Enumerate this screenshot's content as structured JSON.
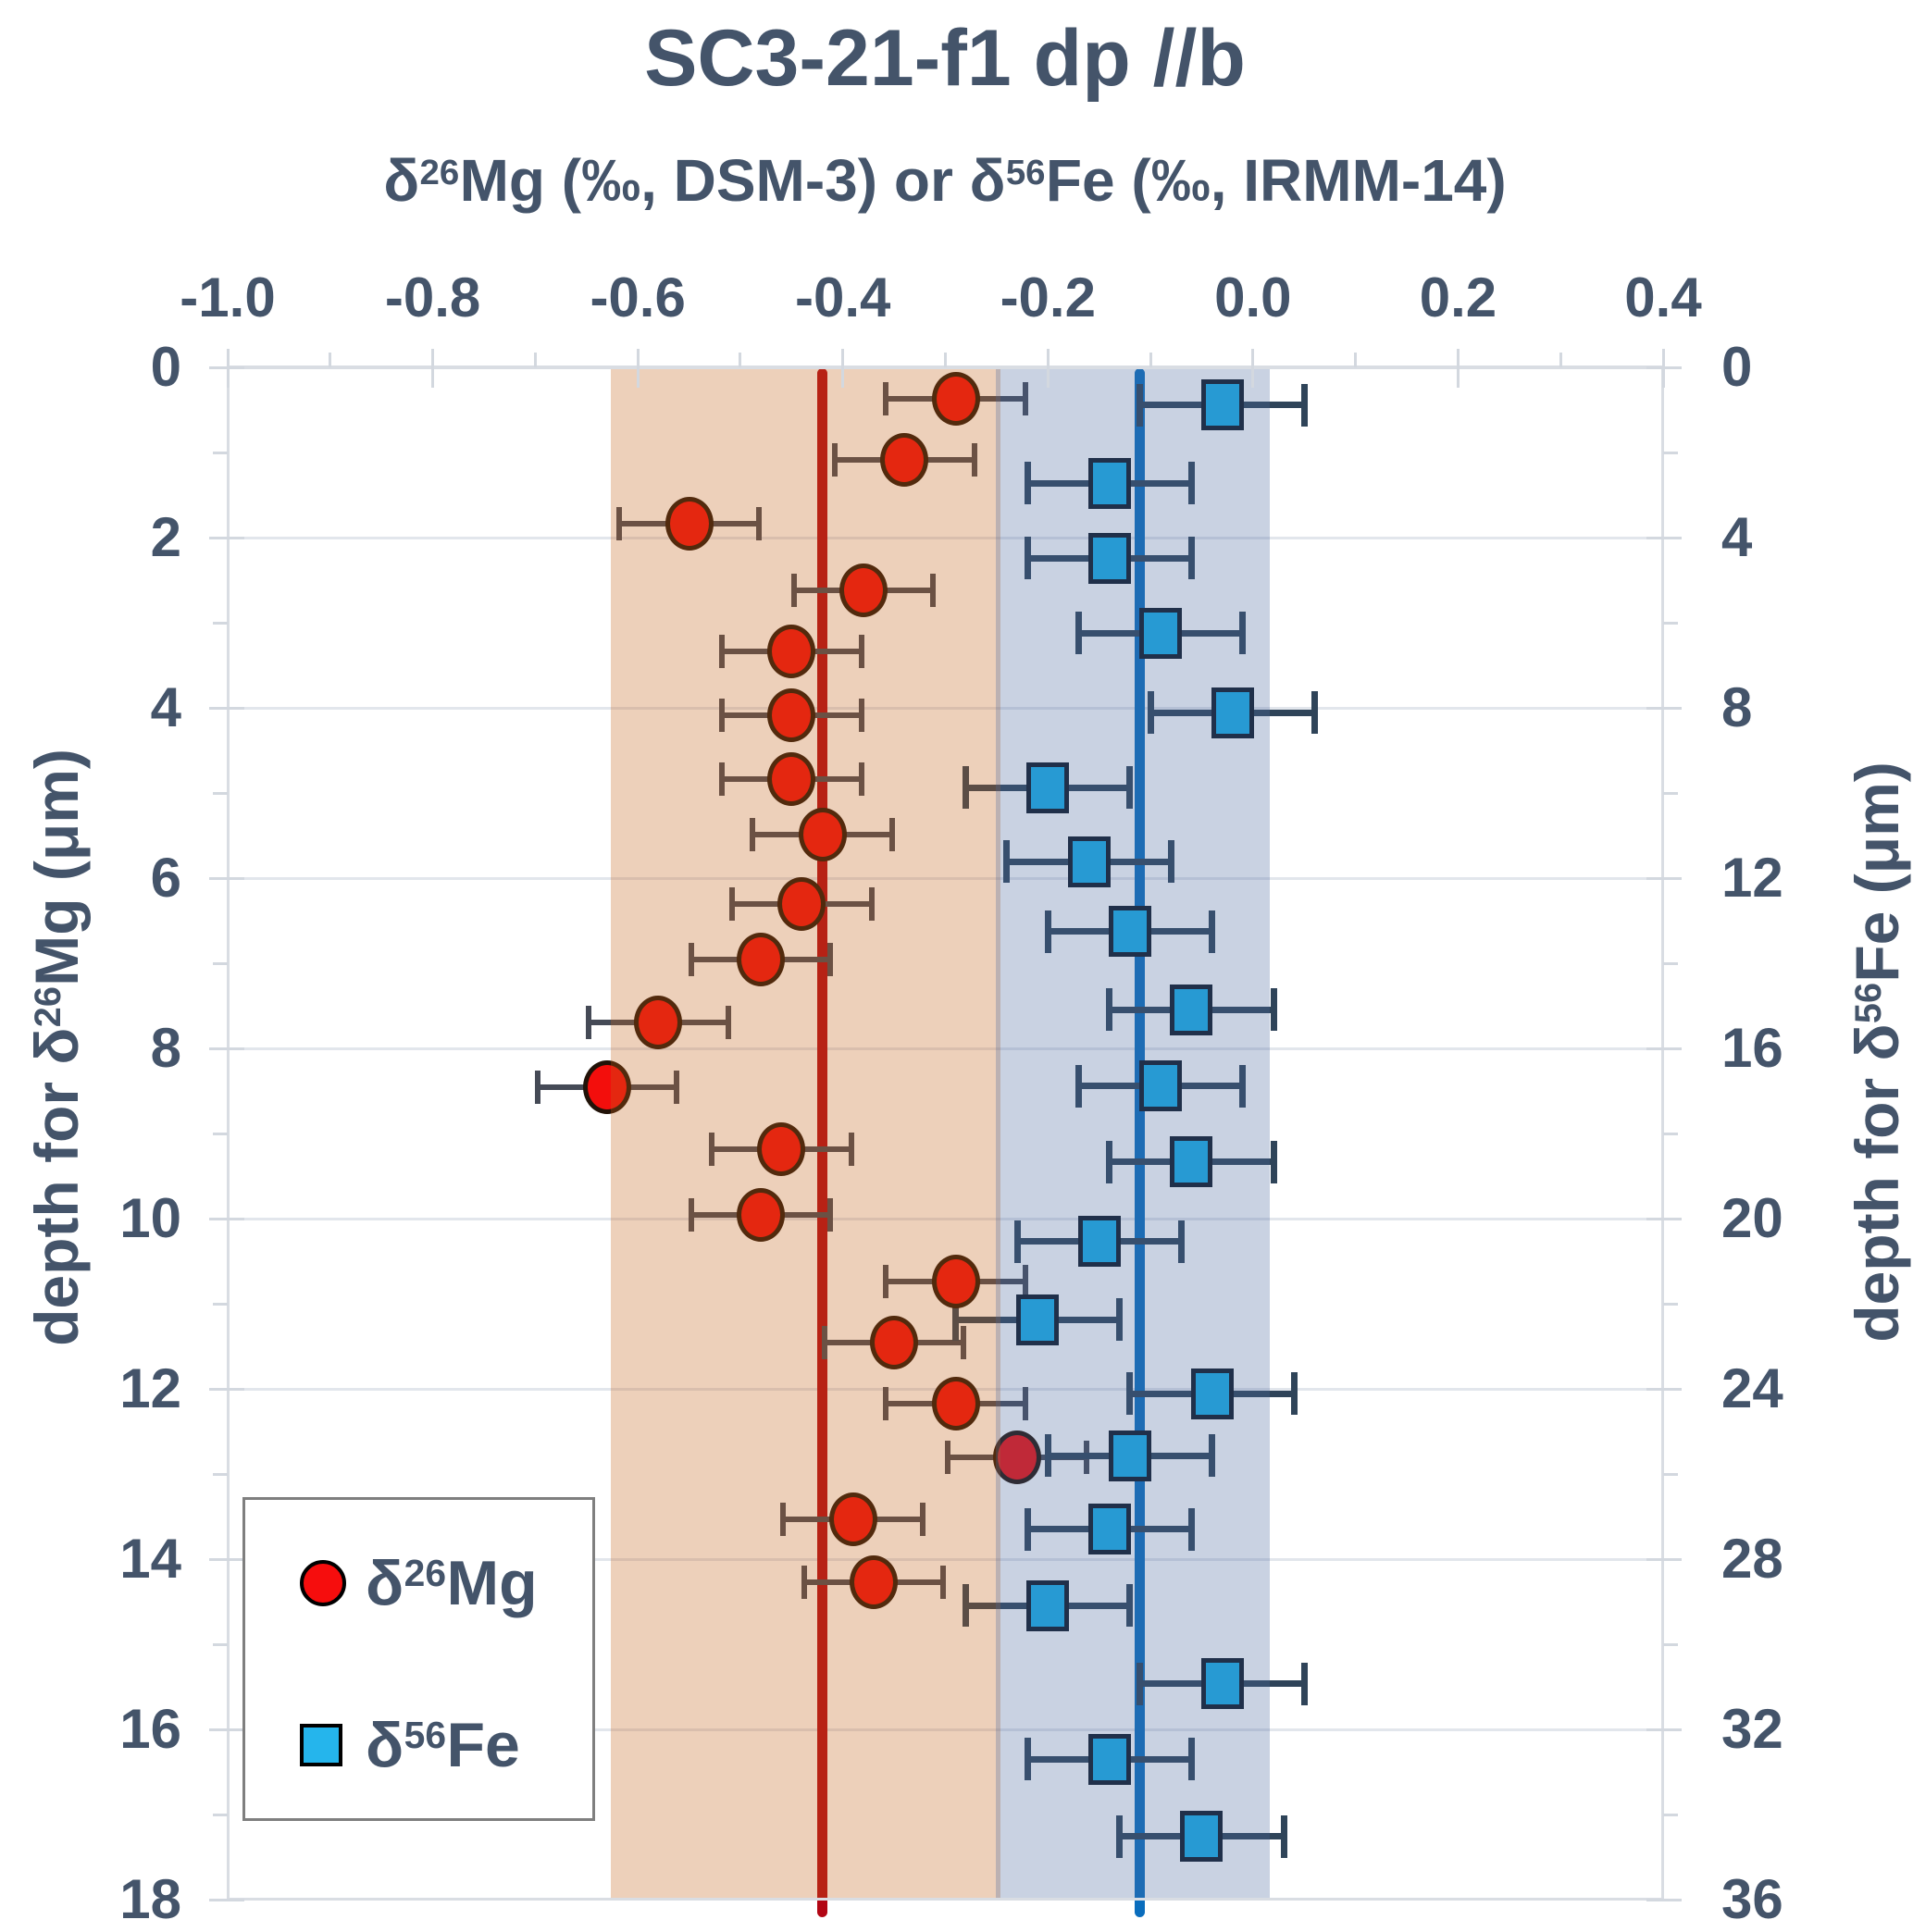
{
  "title": "SC3-21-f1  dp  //b",
  "chart_data": {
    "type": "scatter",
    "title": "SC3-21-f1  dp  //b",
    "x_axis": {
      "title_parts": [
        {
          "t": "δ"
        },
        {
          "s": "26"
        },
        {
          "t": "Mg (‰, DSM-3) or δ"
        },
        {
          "s": "56"
        },
        {
          "t": "Fe (‰, IRMM-14)"
        }
      ],
      "min": -1.0,
      "max": 0.4,
      "minor_tick_step": 0.1,
      "labeled_ticks": [
        -1.0,
        -0.8,
        -0.6,
        -0.4,
        -0.2,
        0.0,
        0.2,
        0.4
      ],
      "labels": [
        "-1.0",
        "-0.8",
        "-0.6",
        "-0.4",
        "-0.2",
        "0.0",
        "0.2",
        "0.4"
      ],
      "position": "top",
      "grid": false
    },
    "y_axis_left": {
      "title_parts": [
        {
          "t": "depth for δ"
        },
        {
          "s": "26"
        },
        {
          "t": "Mg (μm)"
        }
      ],
      "min": 0,
      "max": 18,
      "label_step": 2,
      "minor_tick_step": 1,
      "labels": [
        "0",
        "2",
        "4",
        "6",
        "8",
        "10",
        "12",
        "14",
        "16",
        "18"
      ],
      "grid": true
    },
    "y_axis_right": {
      "title_parts": [
        {
          "t": "depth for δ"
        },
        {
          "s": "56"
        },
        {
          "t": "Fe (μm)"
        }
      ],
      "min": 0,
      "max": 36,
      "label_step": 4,
      "minor_tick_step": 2,
      "labels": [
        "0",
        "4",
        "8",
        "12",
        "16",
        "20",
        "24",
        "28",
        "32",
        "36"
      ]
    },
    "bands": [
      {
        "name": "mg-mean-band",
        "from": -0.626,
        "to": -0.246,
        "color": "rgba(196,99,28,0.30)"
      },
      {
        "name": "fe-mean-band",
        "from": -0.251,
        "to": 0.016,
        "color": "rgba(75,105,158,0.30)"
      }
    ],
    "vlines": [
      {
        "name": "mg-mean-line",
        "x": -0.42,
        "color": "#B20614"
      },
      {
        "name": "fe-mean-line",
        "x": -0.11,
        "color": "#0A6DBD"
      }
    ],
    "series": [
      {
        "name": "δ26Mg",
        "axis": "left",
        "marker": "circle",
        "fill": "#F30E0C",
        "outline": "#211208",
        "error_x": 0.068,
        "error_color": "#454A56",
        "points": [
          {
            "x": -0.29,
            "depth": 0.37
          },
          {
            "x": -0.34,
            "depth": 1.09
          },
          {
            "x": -0.55,
            "depth": 1.84
          },
          {
            "x": -0.38,
            "depth": 2.62
          },
          {
            "x": -0.45,
            "depth": 3.34
          },
          {
            "x": -0.45,
            "depth": 4.09
          },
          {
            "x": -0.45,
            "depth": 4.84
          },
          {
            "x": -0.42,
            "depth": 5.49
          },
          {
            "x": -0.44,
            "depth": 6.3
          },
          {
            "x": -0.48,
            "depth": 6.96
          },
          {
            "x": -0.58,
            "depth": 7.7
          },
          {
            "x": -0.63,
            "depth": 8.46
          },
          {
            "x": -0.46,
            "depth": 9.18
          },
          {
            "x": -0.48,
            "depth": 9.96
          },
          {
            "x": -0.29,
            "depth": 10.74
          },
          {
            "x": -0.35,
            "depth": 11.46
          },
          {
            "x": -0.29,
            "depth": 12.17
          },
          {
            "x": -0.23,
            "depth": 12.8
          },
          {
            "x": -0.39,
            "depth": 13.53
          },
          {
            "x": -0.37,
            "depth": 14.27
          }
        ]
      },
      {
        "name": "δ56Fe",
        "axis": "right",
        "marker": "square",
        "fill": "#18AFEA",
        "outline": "#0D1726",
        "error_x": 0.08,
        "error_color": "#2F4459",
        "points": [
          {
            "x": -0.03,
            "depth": 0.89
          },
          {
            "x": -0.14,
            "depth": 2.72
          },
          {
            "x": -0.14,
            "depth": 4.48
          },
          {
            "x": -0.09,
            "depth": 6.24
          },
          {
            "x": -0.02,
            "depth": 8.11
          },
          {
            "x": -0.2,
            "depth": 9.87
          },
          {
            "x": -0.16,
            "depth": 11.61
          },
          {
            "x": -0.12,
            "depth": 13.26
          },
          {
            "x": -0.06,
            "depth": 15.09
          },
          {
            "x": -0.09,
            "depth": 16.89
          },
          {
            "x": -0.06,
            "depth": 18.67
          },
          {
            "x": -0.15,
            "depth": 20.54
          },
          {
            "x": -0.21,
            "depth": 22.37
          },
          {
            "x": -0.04,
            "depth": 24.11
          },
          {
            "x": -0.12,
            "depth": 25.57
          },
          {
            "x": -0.14,
            "depth": 27.3
          },
          {
            "x": -0.2,
            "depth": 29.09
          },
          {
            "x": -0.03,
            "depth": 30.93
          },
          {
            "x": -0.14,
            "depth": 32.7
          },
          {
            "x": -0.05,
            "depth": 34.52
          }
        ]
      }
    ],
    "legend": {
      "position": "bottom-left",
      "items": [
        {
          "parts": [
            {
              "t": "δ"
            },
            {
              "s": "26"
            },
            {
              "t": "Mg"
            }
          ],
          "marker": "circle",
          "fill": "#F60D0D"
        },
        {
          "parts": [
            {
              "t": "δ"
            },
            {
              "s": "56"
            },
            {
              "t": "Fe"
            }
          ],
          "marker": "square",
          "fill": "#25B5EC"
        }
      ]
    },
    "colors": {
      "text": "#44546A",
      "gridline": "#E2E6EC",
      "plot_border": "#D9DDE3",
      "tick": "#D3D8DF",
      "legend_border": "#7F7F7F"
    }
  }
}
